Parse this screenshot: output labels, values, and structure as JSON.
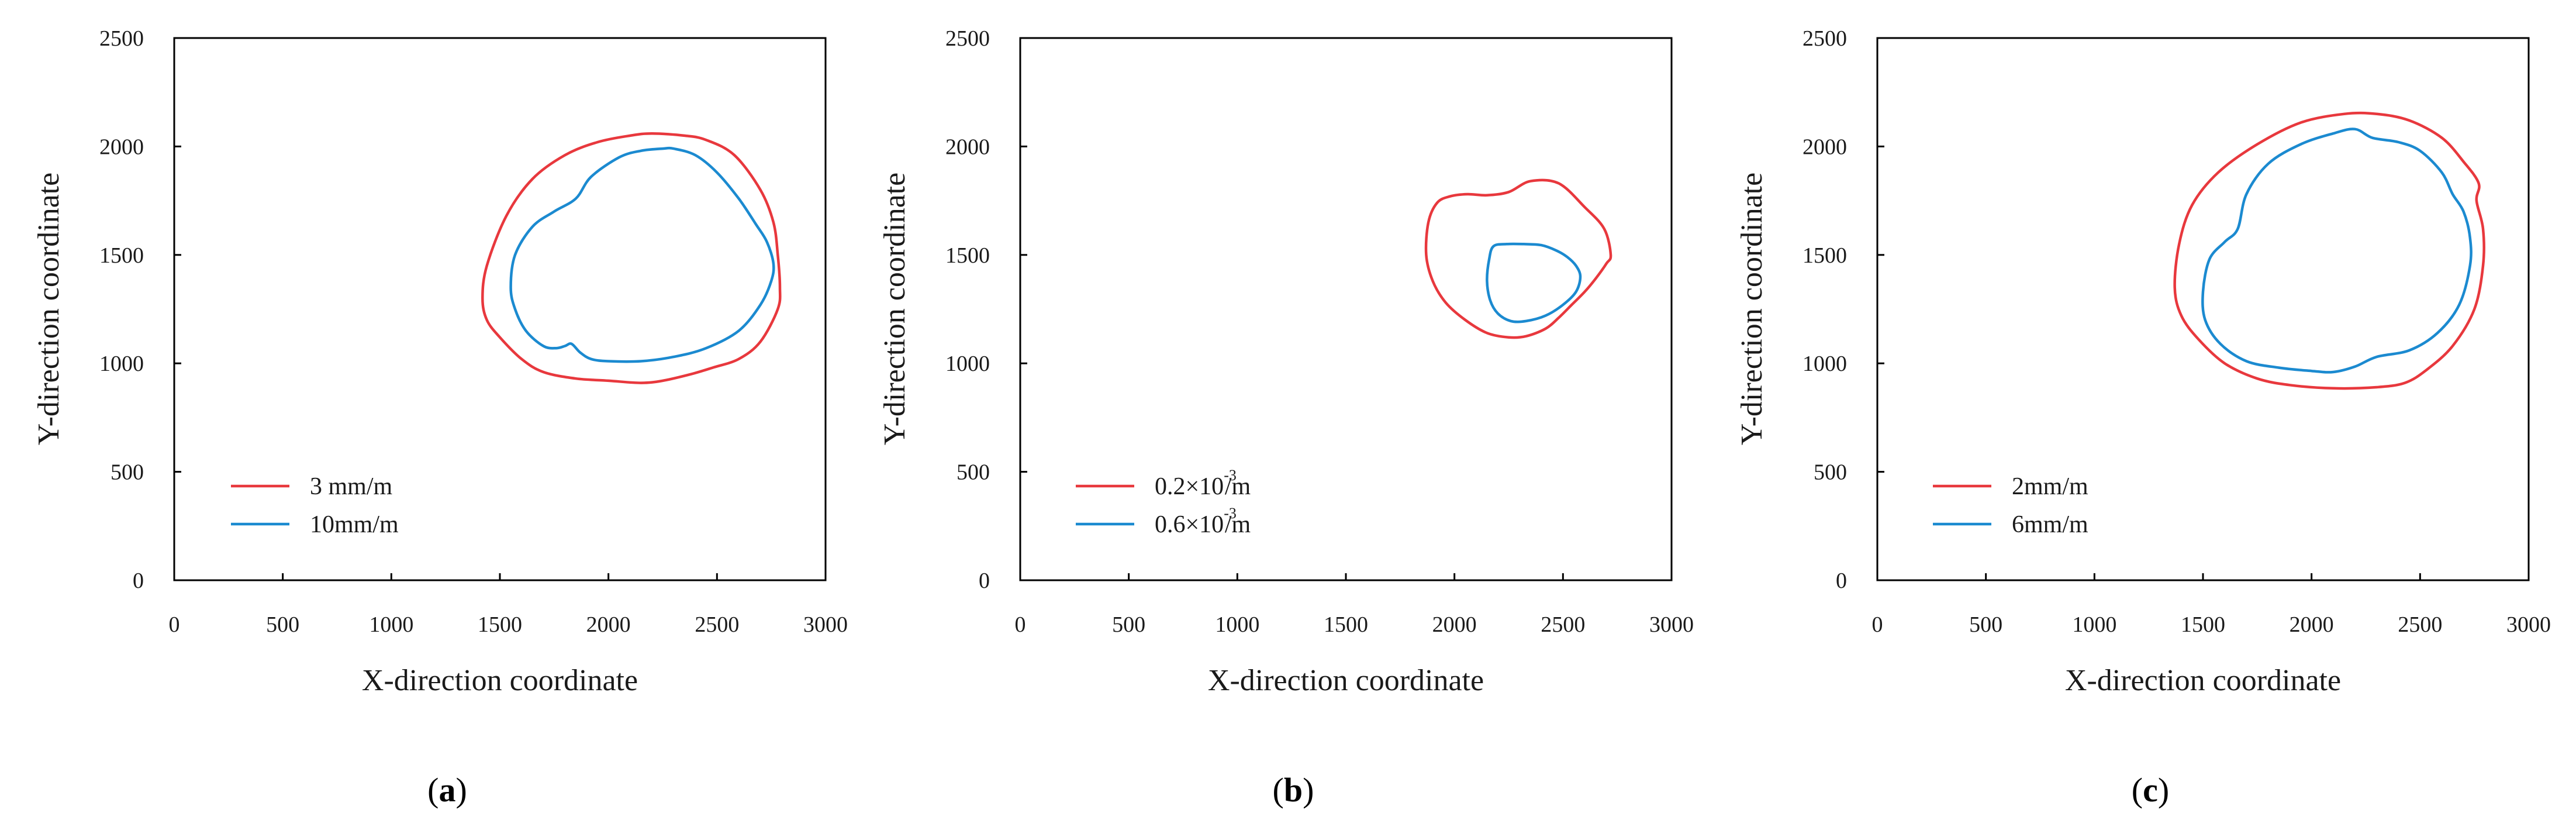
{
  "chart_data": [
    {
      "type": "line",
      "panel_label": "a",
      "xlabel": "X-direction coordinate",
      "ylabel": "Y-direction coordinate",
      "xlim": [
        0,
        3000
      ],
      "ylim": [
        0,
        2500
      ],
      "xticks": [
        "0",
        "500",
        "1000",
        "1500",
        "2000",
        "2500",
        "3000"
      ],
      "yticks": [
        "0",
        "500",
        "1000",
        "1500",
        "2000",
        "2500"
      ],
      "legend_position": "bottom-left",
      "series": [
        {
          "name": "3 mm/m",
          "label": "3 mm/m",
          "color": "#e8383d",
          "x": [
            1420,
            1440,
            1530,
            1650,
            1800,
            1950,
            2100,
            2200,
            2350,
            2450,
            2580,
            2700,
            2760,
            2780,
            2790,
            2780,
            2700,
            2600,
            2480,
            2380,
            2250,
            2150,
            2000,
            1850,
            1700,
            1600,
            1500,
            1440,
            1420
          ],
          "y": [
            1300,
            1450,
            1680,
            1850,
            1960,
            2020,
            2050,
            2060,
            2050,
            2030,
            1960,
            1800,
            1650,
            1500,
            1350,
            1250,
            1100,
            1020,
            980,
            950,
            920,
            910,
            920,
            930,
            960,
            1020,
            1120,
            1200,
            1300
          ]
        },
        {
          "name": "10mm/m",
          "label": "10mm/m",
          "color": "#1b8ad0",
          "x": [
            1550,
            1570,
            1650,
            1750,
            1850,
            1920,
            2050,
            2150,
            2250,
            2300,
            2400,
            2500,
            2600,
            2680,
            2730,
            2760,
            2750,
            2700,
            2600,
            2450,
            2300,
            2150,
            2000,
            1920,
            1870,
            1830,
            1800,
            1760,
            1700,
            1620,
            1570,
            1550
          ],
          "y": [
            1350,
            1500,
            1630,
            1700,
            1760,
            1860,
            1950,
            1980,
            1990,
            1990,
            1960,
            1880,
            1760,
            1640,
            1560,
            1460,
            1380,
            1270,
            1150,
            1070,
            1030,
            1010,
            1010,
            1020,
            1050,
            1090,
            1080,
            1070,
            1080,
            1150,
            1250,
            1350
          ]
        }
      ]
    },
    {
      "type": "line",
      "panel_label": "b",
      "xlabel": "X-direction coordinate",
      "ylabel": "Y-direction coordinate",
      "xlim": [
        0,
        3000
      ],
      "ylim": [
        0,
        2500
      ],
      "xticks": [
        "0",
        "500",
        "1000",
        "1500",
        "2000",
        "2500",
        "3000"
      ],
      "yticks": [
        "0",
        "500",
        "1000",
        "1500",
        "2000",
        "2500"
      ],
      "legend_position": "bottom-left",
      "series": [
        {
          "name": "0.2×10^-3/m",
          "label": "0.2×10",
          "exponent": "-3",
          "unit": "/m",
          "color": "#e8383d",
          "x": [
            1880,
            1870,
            1900,
            1960,
            2050,
            2150,
            2250,
            2330,
            2420,
            2480,
            2540,
            2600,
            2650,
            2700,
            2720,
            2690,
            2600,
            2480,
            2350,
            2250,
            2150,
            2060,
            1980,
            1920,
            1880
          ],
          "y": [
            1650,
            1500,
            1380,
            1280,
            1200,
            1140,
            1120,
            1125,
            1160,
            1210,
            1270,
            1330,
            1390,
            1460,
            1500,
            1620,
            1720,
            1830,
            1840,
            1790,
            1775,
            1780,
            1770,
            1740,
            1650
          ]
        },
        {
          "name": "0.6×10^-3/m",
          "label": "0.6×10",
          "exponent": "-3",
          "unit": "/m",
          "color": "#1b8ad0",
          "x": [
            2160,
            2150,
            2165,
            2200,
            2260,
            2330,
            2420,
            2500,
            2560,
            2580,
            2560,
            2520,
            2470,
            2400,
            2320,
            2240,
            2180,
            2160
          ],
          "y": [
            1480,
            1380,
            1290,
            1230,
            1195,
            1195,
            1220,
            1270,
            1330,
            1400,
            1450,
            1490,
            1520,
            1545,
            1550,
            1550,
            1540,
            1480
          ]
        }
      ]
    },
    {
      "type": "line",
      "panel_label": "c",
      "xlabel": "X-direction coordinate",
      "ylabel": "Y-direction coordinate",
      "xlim": [
        0,
        3000
      ],
      "ylim": [
        0,
        2500
      ],
      "xticks": [
        "0",
        "500",
        "1000",
        "1500",
        "2000",
        "2500",
        "3000"
      ],
      "yticks": [
        "0",
        "500",
        "1000",
        "1500",
        "2000",
        "2500"
      ],
      "legend_position": "bottom-left",
      "series": [
        {
          "name": "2mm/m",
          "label": "2mm/m",
          "color": "#e8383d",
          "x": [
            1370,
            1390,
            1450,
            1570,
            1750,
            1950,
            2150,
            2300,
            2450,
            2600,
            2700,
            2770,
            2760,
            2790,
            2790,
            2750,
            2650,
            2530,
            2430,
            2300,
            2100,
            1900,
            1750,
            1600,
            1480,
            1400,
            1370
          ],
          "y": [
            1350,
            1550,
            1730,
            1880,
            2010,
            2110,
            2150,
            2150,
            2120,
            2040,
            1930,
            1830,
            1750,
            1620,
            1450,
            1250,
            1080,
            970,
            910,
            890,
            885,
            900,
            930,
            1000,
            1110,
            1220,
            1350
          ]
        },
        {
          "name": "6mm/m",
          "label": "6mm/m",
          "color": "#1b8ad0",
          "x": [
            1500,
            1530,
            1600,
            1660,
            1700,
            1800,
            1950,
            2100,
            2200,
            2280,
            2400,
            2500,
            2600,
            2650,
            2700,
            2730,
            2730,
            2680,
            2580,
            2450,
            2300,
            2200,
            2100,
            2000,
            1850,
            1700,
            1580,
            1510,
            1500
          ],
          "y": [
            1330,
            1480,
            1560,
            1620,
            1780,
            1920,
            2010,
            2060,
            2080,
            2040,
            2020,
            1980,
            1880,
            1780,
            1700,
            1580,
            1450,
            1270,
            1140,
            1060,
            1030,
            985,
            960,
            965,
            980,
            1010,
            1090,
            1200,
            1330
          ]
        }
      ]
    }
  ]
}
